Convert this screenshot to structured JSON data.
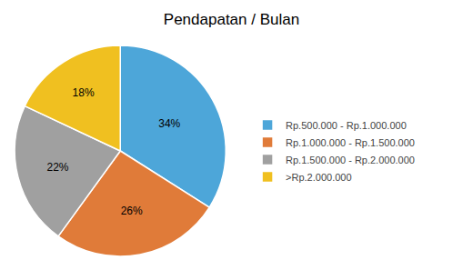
{
  "chart_data": {
    "type": "pie",
    "title": "Pendapatan / Bulan",
    "categories": [
      "Rp.500.000 - Rp.1.000.000",
      "Rp.1.000.000 - Rp.1.500.000",
      "Rp.1.500.000 - Rp.2.000.000",
      ">Rp.2.000.000"
    ],
    "values": [
      34,
      26,
      22,
      18
    ],
    "value_labels": [
      "34%",
      "26%",
      "22%",
      "18%"
    ],
    "colors": [
      "#4DA6D9",
      "#E07B39",
      "#A0A0A0",
      "#F0C020"
    ],
    "data_labels": true,
    "legend": "right"
  }
}
